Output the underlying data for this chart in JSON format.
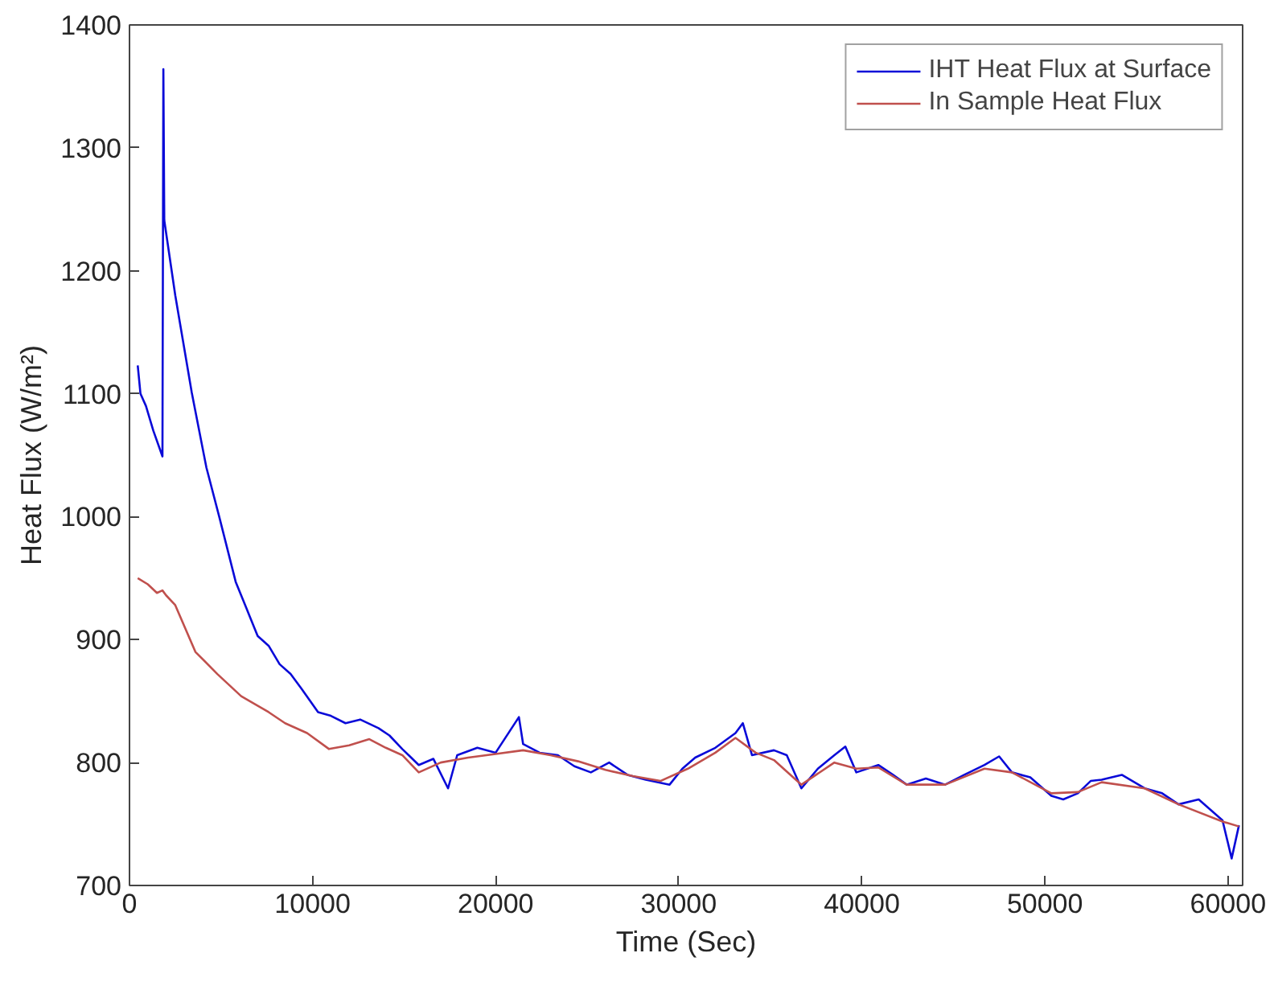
{
  "chart_data": {
    "type": "line",
    "xlabel": "Time (Sec)",
    "ylabel": "Heat Flux (W/m²)",
    "xlim": [
      0,
      60800
    ],
    "ylim": [
      700,
      1400
    ],
    "xticks": [
      0,
      10000,
      20000,
      30000,
      40000,
      50000,
      60000
    ],
    "yticks": [
      700,
      800,
      900,
      1000,
      1100,
      1200,
      1300,
      1400
    ],
    "grid": false,
    "legend": "top right",
    "line_style": "solid",
    "marker": "none",
    "series": [
      {
        "name": "IHT Heat Flux at Surface",
        "color": "#0a0ad8",
        "x": [
          450,
          600,
          900,
          1300,
          1800,
          1850,
          1900,
          2500,
          3400,
          4200,
          4900,
          5800,
          6400,
          7000,
          7600,
          8200,
          8800,
          9400,
          10300,
          11000,
          11800,
          12600,
          13600,
          14200,
          14900,
          15800,
          16600,
          17400,
          17900,
          19000,
          20000,
          21270,
          21500,
          22400,
          23400,
          24300,
          25200,
          26200,
          27200,
          28200,
          29500,
          30200,
          30900,
          32000,
          33100,
          33500,
          34000,
          35200,
          35900,
          36700,
          37600,
          38500,
          39100,
          39700,
          40900,
          41700,
          42450,
          43500,
          44550,
          45600,
          46700,
          47500,
          48200,
          49200,
          50350,
          51000,
          51800,
          52500,
          53100,
          54200,
          55450,
          56400,
          57300,
          58400,
          59700,
          60200,
          60600
        ],
        "values": [
          1123,
          1100,
          1090,
          1070,
          1049,
          1364,
          1241,
          1180,
          1101,
          1040,
          1000,
          947,
          925,
          903,
          895,
          880,
          872,
          860,
          841,
          838,
          832,
          835,
          828,
          822,
          811,
          798,
          803,
          779,
          806,
          812,
          808,
          837,
          815,
          808,
          806,
          797,
          792,
          800,
          790,
          786,
          782,
          795,
          804,
          812,
          824,
          832,
          806,
          810,
          806,
          779,
          795,
          806,
          813,
          792,
          798,
          790,
          782,
          787,
          782,
          790,
          798,
          805,
          792,
          788,
          773,
          770,
          775,
          785,
          786,
          790,
          779,
          775,
          766,
          770,
          753,
          722,
          749
        ]
      },
      {
        "name": "In Sample Heat Flux",
        "color": "#c0504d",
        "x": [
          450,
          1000,
          1500,
          1800,
          2000,
          2500,
          3600,
          4800,
          6100,
          6800,
          7600,
          8500,
          9700,
          10900,
          12000,
          13100,
          14000,
          14900,
          15800,
          17000,
          18500,
          20000,
          21500,
          23000,
          24500,
          26000,
          27500,
          29000,
          30500,
          32000,
          33100,
          34200,
          35200,
          36700,
          38500,
          39700,
          40900,
          42450,
          44550,
          46700,
          48200,
          50350,
          51800,
          53100,
          55450,
          57300,
          59700,
          60600
        ],
        "values": [
          950,
          945,
          938,
          940,
          936,
          928,
          890,
          872,
          854,
          848,
          841,
          832,
          824,
          811,
          814,
          819,
          812,
          806,
          792,
          800,
          804,
          807,
          810,
          806,
          801,
          794,
          789,
          785,
          795,
          808,
          820,
          808,
          802,
          782,
          800,
          795,
          796,
          782,
          782,
          795,
          792,
          775,
          776,
          784,
          779,
          766,
          752,
          748
        ]
      }
    ]
  }
}
